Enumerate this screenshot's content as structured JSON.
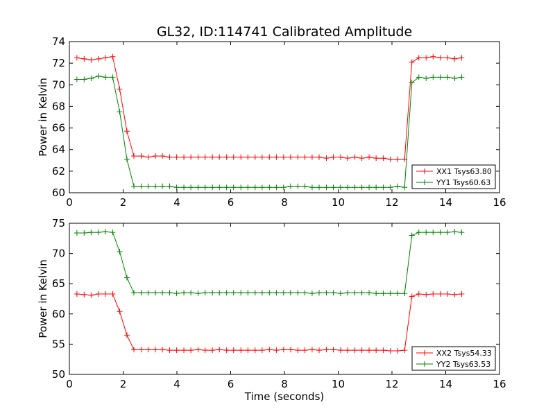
{
  "chart_data": [
    {
      "type": "line",
      "title": "GL32, ID:114741 Calibrated Amplitude",
      "xlabel": "",
      "ylabel": "Power in Kelvin",
      "xlim": [
        0,
        16
      ],
      "ylim": [
        60,
        74
      ],
      "xticks": [
        "0",
        "2",
        "4",
        "6",
        "8",
        "10",
        "12",
        "14",
        "16"
      ],
      "yticks": [
        "60",
        "62",
        "64",
        "66",
        "68",
        "70",
        "72",
        "74"
      ],
      "x": [
        0.28,
        0.55,
        0.81,
        1.08,
        1.34,
        1.61,
        1.87,
        2.14,
        2.4,
        2.67,
        2.93,
        3.2,
        3.46,
        3.73,
        3.99,
        4.26,
        4.52,
        4.79,
        5.05,
        5.32,
        5.58,
        5.85,
        6.11,
        6.38,
        6.64,
        6.91,
        7.17,
        7.44,
        7.7,
        7.97,
        8.23,
        8.5,
        8.76,
        9.03,
        9.29,
        9.56,
        9.82,
        10.09,
        10.35,
        10.62,
        10.88,
        11.15,
        11.41,
        11.68,
        11.94,
        12.21,
        12.47,
        12.74,
        13.0,
        13.27,
        13.53,
        13.8,
        14.06,
        14.33,
        14.59
      ],
      "series": [
        {
          "name": "XX1 Tsys63.80",
          "color": "#ff0000",
          "values": [
            72.5,
            72.4,
            72.3,
            72.4,
            72.5,
            72.6,
            69.6,
            65.7,
            63.4,
            63.4,
            63.3,
            63.4,
            63.4,
            63.3,
            63.3,
            63.3,
            63.3,
            63.3,
            63.3,
            63.3,
            63.3,
            63.3,
            63.3,
            63.3,
            63.3,
            63.3,
            63.3,
            63.3,
            63.3,
            63.3,
            63.3,
            63.3,
            63.3,
            63.3,
            63.3,
            63.2,
            63.3,
            63.3,
            63.2,
            63.3,
            63.2,
            63.3,
            63.2,
            63.2,
            63.1,
            63.1,
            63.1,
            72.1,
            72.5,
            72.5,
            72.6,
            72.5,
            72.5,
            72.4,
            72.5
          ]
        },
        {
          "name": "YY1 Tsys60.63",
          "color": "#008000",
          "values": [
            70.5,
            70.5,
            70.6,
            70.8,
            70.7,
            70.7,
            67.5,
            63.1,
            60.6,
            60.6,
            60.6,
            60.6,
            60.6,
            60.6,
            60.5,
            60.5,
            60.5,
            60.5,
            60.5,
            60.5,
            60.5,
            60.5,
            60.5,
            60.5,
            60.5,
            60.5,
            60.5,
            60.5,
            60.5,
            60.5,
            60.6,
            60.6,
            60.6,
            60.5,
            60.5,
            60.5,
            60.5,
            60.5,
            60.5,
            60.5,
            60.5,
            60.5,
            60.5,
            60.5,
            60.5,
            60.6,
            60.5,
            70.2,
            70.7,
            70.6,
            70.7,
            70.7,
            70.7,
            70.6,
            70.7
          ]
        }
      ],
      "legend_position": "lower-right",
      "grid": false
    },
    {
      "type": "line",
      "title": "",
      "xlabel": "Time (seconds)",
      "ylabel": "Power in Kelvin",
      "xlim": [
        0,
        16
      ],
      "ylim": [
        50,
        75
      ],
      "xticks": [
        "0",
        "2",
        "4",
        "6",
        "8",
        "10",
        "12",
        "14",
        "16"
      ],
      "yticks": [
        "50",
        "55",
        "60",
        "65",
        "70",
        "75"
      ],
      "x": [
        0.28,
        0.55,
        0.81,
        1.08,
        1.34,
        1.61,
        1.87,
        2.14,
        2.4,
        2.67,
        2.93,
        3.2,
        3.46,
        3.73,
        3.99,
        4.26,
        4.52,
        4.79,
        5.05,
        5.32,
        5.58,
        5.85,
        6.11,
        6.38,
        6.64,
        6.91,
        7.17,
        7.44,
        7.7,
        7.97,
        8.23,
        8.5,
        8.76,
        9.03,
        9.29,
        9.56,
        9.82,
        10.09,
        10.35,
        10.62,
        10.88,
        11.15,
        11.41,
        11.68,
        11.94,
        12.21,
        12.47,
        12.74,
        13.0,
        13.27,
        13.53,
        13.8,
        14.06,
        14.33,
        14.59
      ],
      "series": [
        {
          "name": "XX2 Tsys54.33",
          "color": "#ff0000",
          "values": [
            63.3,
            63.2,
            63.1,
            63.3,
            63.3,
            63.3,
            60.4,
            56.5,
            54.1,
            54.1,
            54.1,
            54.1,
            54.1,
            54.0,
            54.0,
            54.0,
            54.0,
            54.1,
            54.0,
            54.0,
            54.1,
            54.0,
            54.0,
            54.0,
            54.0,
            54.0,
            54.0,
            54.1,
            54.0,
            54.1,
            54.1,
            54.0,
            54.0,
            54.1,
            54.0,
            54.1,
            54.1,
            54.0,
            54.0,
            54.0,
            54.0,
            54.0,
            54.0,
            54.0,
            53.9,
            53.9,
            54.0,
            62.9,
            63.3,
            63.2,
            63.3,
            63.3,
            63.3,
            63.2,
            63.3
          ]
        },
        {
          "name": "YY2 Tsys63.53",
          "color": "#008000",
          "values": [
            73.4,
            73.4,
            73.5,
            73.5,
            73.6,
            73.5,
            70.3,
            66.0,
            63.5,
            63.5,
            63.5,
            63.5,
            63.5,
            63.5,
            63.4,
            63.5,
            63.5,
            63.4,
            63.5,
            63.5,
            63.5,
            63.5,
            63.5,
            63.5,
            63.5,
            63.5,
            63.5,
            63.5,
            63.5,
            63.5,
            63.5,
            63.5,
            63.5,
            63.4,
            63.5,
            63.5,
            63.5,
            63.4,
            63.5,
            63.5,
            63.5,
            63.5,
            63.4,
            63.4,
            63.4,
            63.4,
            63.4,
            73.0,
            73.5,
            73.5,
            73.5,
            73.5,
            73.5,
            73.6,
            73.5
          ]
        }
      ],
      "legend_position": "lower-right",
      "grid": false
    }
  ]
}
